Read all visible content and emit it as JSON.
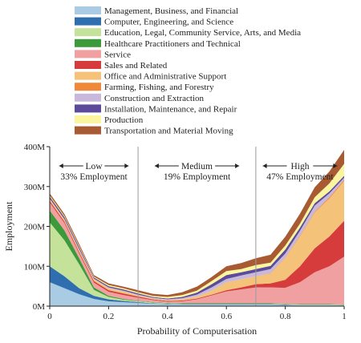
{
  "chart_data": {
    "type": "area",
    "stacked": true,
    "xlabel": "Probability of Computerisation",
    "ylabel": "Employment",
    "xlim": [
      0,
      1
    ],
    "ylim": [
      0,
      400
    ],
    "x_ticks": [
      "0",
      "0.2",
      "0.4",
      "0.6",
      "0.8",
      "1"
    ],
    "y_ticks": [
      "0M",
      "100M",
      "200M",
      "300M",
      "400M"
    ],
    "grid": false,
    "legend_position": "top",
    "x": [
      0,
      0.05,
      0.1,
      0.15,
      0.2,
      0.25,
      0.3,
      0.35,
      0.4,
      0.45,
      0.5,
      0.55,
      0.6,
      0.65,
      0.7,
      0.75,
      0.8,
      0.85,
      0.9,
      0.95,
      1.0
    ],
    "series": [
      {
        "name": "Management, Business, and Financial",
        "color": "#a9cbe3",
        "values": [
          60,
          45,
          30,
          18,
          12,
          10,
          8,
          6,
          5,
          4,
          4,
          4,
          4,
          4,
          4,
          4,
          3,
          3,
          3,
          3,
          2
        ]
      },
      {
        "name": "Computer, Engineering, and Science",
        "color": "#2f6fb0",
        "values": [
          40,
          30,
          15,
          8,
          5,
          3,
          2,
          1,
          1,
          1,
          1,
          1,
          1,
          1,
          1,
          1,
          1,
          0,
          0,
          0,
          0
        ]
      },
      {
        "name": "Education, Legal, Community Service, Arts, and Media",
        "color": "#c4e29a",
        "values": [
          110,
          90,
          60,
          15,
          6,
          3,
          2,
          2,
          1,
          1,
          1,
          1,
          1,
          1,
          1,
          1,
          1,
          1,
          1,
          1,
          1
        ]
      },
      {
        "name": "Healthcare Practitioners and Technical",
        "color": "#3c9a3a",
        "values": [
          30,
          25,
          15,
          6,
          3,
          2,
          1,
          1,
          1,
          1,
          1,
          1,
          1,
          1,
          1,
          1,
          1,
          1,
          1,
          1,
          1
        ]
      },
      {
        "name": "Service",
        "color": "#f0a0a0",
        "values": [
          20,
          18,
          12,
          12,
          10,
          10,
          8,
          5,
          3,
          5,
          10,
          20,
          30,
          35,
          40,
          40,
          40,
          55,
          80,
          95,
          120
        ]
      },
      {
        "name": "Sales and Related",
        "color": "#d63c3c",
        "values": [
          4,
          4,
          4,
          4,
          4,
          4,
          3,
          2,
          2,
          2,
          2,
          2,
          3,
          5,
          8,
          10,
          20,
          40,
          60,
          75,
          90
        ]
      },
      {
        "name": "Office and Administrative Support",
        "color": "#f5c27a",
        "values": [
          5,
          5,
          5,
          5,
          5,
          5,
          3,
          2,
          2,
          3,
          5,
          10,
          20,
          20,
          20,
          25,
          55,
          75,
          90,
          95,
          100
        ]
      },
      {
        "name": "Farming, Fishing, and Forestry",
        "color": "#f0883a",
        "values": [
          0,
          0,
          0,
          0,
          0,
          0,
          0,
          0,
          0,
          0,
          0,
          0,
          0,
          0,
          0,
          1,
          1,
          2,
          2,
          3,
          3
        ]
      },
      {
        "name": "Construction and Extraction",
        "color": "#c8b8dc",
        "values": [
          1,
          1,
          2,
          1,
          2,
          2,
          2,
          2,
          2,
          3,
          5,
          8,
          8,
          10,
          10,
          10,
          10,
          12,
          15,
          10,
          5
        ]
      },
      {
        "name": "Installation, Maintenance, and Repair",
        "color": "#5c4a9a",
        "values": [
          5,
          5,
          5,
          3,
          3,
          3,
          3,
          2,
          2,
          3,
          5,
          8,
          10,
          8,
          8,
          8,
          10,
          8,
          6,
          5,
          5
        ]
      },
      {
        "name": "Production",
        "color": "#fbf5a0",
        "values": [
          3,
          3,
          3,
          2,
          3,
          3,
          3,
          3,
          4,
          5,
          5,
          8,
          10,
          8,
          10,
          8,
          10,
          10,
          15,
          20,
          30
        ]
      },
      {
        "name": "Transportation and Material Moving",
        "color": "#a85a32",
        "values": [
          5,
          5,
          5,
          4,
          4,
          4,
          5,
          5,
          5,
          7,
          10,
          10,
          12,
          15,
          17,
          20,
          22,
          25,
          25,
          30,
          35
        ]
      }
    ],
    "annotations": [
      {
        "x_range": [
          0,
          0.3
        ],
        "label": "Low",
        "sublabel": "33% Employment"
      },
      {
        "x_range": [
          0.3,
          0.7
        ],
        "label": "Medium",
        "sublabel": "19% Employment"
      },
      {
        "x_range": [
          0.7,
          1
        ],
        "label": "High",
        "sublabel": "47% Employment"
      }
    ],
    "dividers": [
      0.3,
      0.7
    ]
  }
}
